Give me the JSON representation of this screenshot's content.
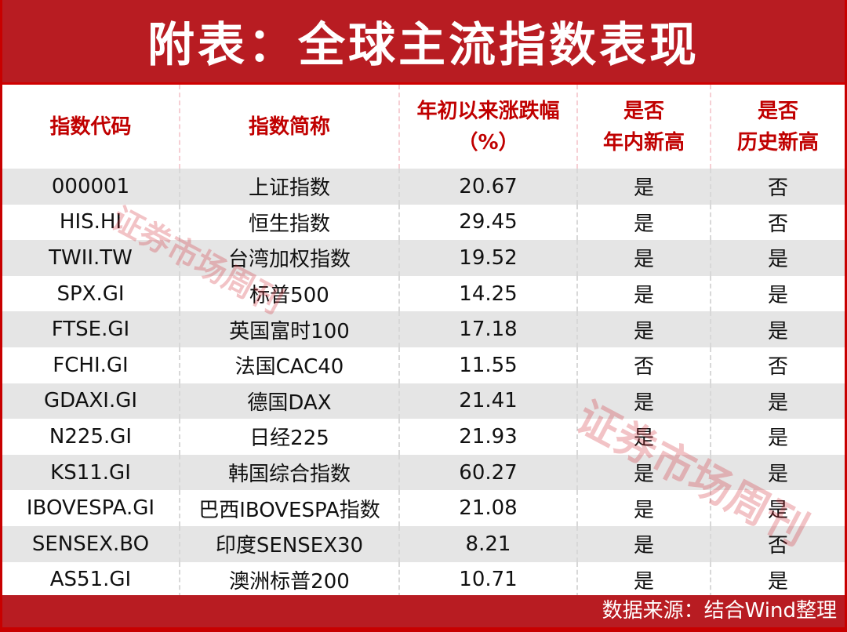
{
  "title": "附表：全球主流指数表现",
  "headers": [
    {
      "line1": "指数代码",
      "line2": ""
    },
    {
      "line1": "指数简称",
      "line2": ""
    },
    {
      "line1": "年初以来涨跌幅",
      "line2": "（%）"
    },
    {
      "line1": "是否",
      "line2": "年内新高"
    },
    {
      "line1": "是否",
      "line2": "历史新高"
    }
  ],
  "rows": [
    [
      "000001",
      "上证指数",
      "20.67",
      "是",
      "否"
    ],
    [
      "HIS.HI",
      "恒生指数",
      "29.45",
      "是",
      "否"
    ],
    [
      "TWII.TW",
      "台湾加权指数",
      "19.52",
      "是",
      "是"
    ],
    [
      "SPX.GI",
      "标普500",
      "14.25",
      "是",
      "是"
    ],
    [
      "FTSE.GI",
      "英国富时100",
      "17.18",
      "是",
      "是"
    ],
    [
      "FCHI.GI",
      "法国CAC40",
      "11.55",
      "否",
      "否"
    ],
    [
      "GDAXI.GI",
      "德国DAX",
      "21.41",
      "是",
      "是"
    ],
    [
      "N225.GI",
      "日经225",
      "21.93",
      "是",
      "是"
    ],
    [
      "KS11.GI",
      "韩国综合指数",
      "60.27",
      "是",
      "是"
    ],
    [
      "IBOVESPA.GI",
      "巴西IBOVESPA指数",
      "21.08",
      "是",
      "是"
    ],
    [
      "SENSEX.BO",
      "印度SENSEX30",
      "8.21",
      "是",
      "否"
    ],
    [
      "AS51.GI",
      "澳洲标普200",
      "10.71",
      "是",
      "是"
    ]
  ],
  "footer": "数据来源：结合Wind整理",
  "watermark": "证券市场周刊",
  "colors": {
    "brand_red": "#b81c22",
    "header_text": "#c00000",
    "stripe": "#e5e5e5"
  }
}
